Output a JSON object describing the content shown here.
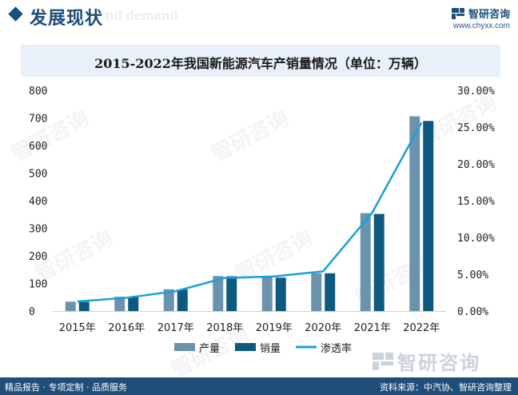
{
  "header": {
    "title": "发展现状",
    "ghost_text": "nd demand",
    "brand_name": "智研咨询",
    "brand_url": "www.chyxx.com"
  },
  "chart_data": {
    "type": "bar",
    "title": "2015-2022年我国新能源汽车产销量情况（单位：万辆）",
    "categories": [
      "2015年",
      "2016年",
      "2017年",
      "2018年",
      "2019年",
      "2020年",
      "2021年",
      "2022年"
    ],
    "series": [
      {
        "name": "产量",
        "type": "bar",
        "axis": "left",
        "color": "#6b93ad",
        "values": [
          34,
          52,
          79,
          127,
          124,
          137,
          355,
          706
        ]
      },
      {
        "name": "销量",
        "type": "bar",
        "axis": "left",
        "color": "#0d5a7e",
        "values": [
          33,
          51,
          78,
          126,
          121,
          137,
          352,
          689
        ]
      },
      {
        "name": "渗透率",
        "type": "line",
        "axis": "right",
        "color": "#1a9fdc",
        "values": [
          1.3,
          1.8,
          2.7,
          4.5,
          4.7,
          5.4,
          13.4,
          25.6
        ]
      }
    ],
    "ylim": [
      0,
      800
    ],
    "yticks": [
      "800",
      "700",
      "600",
      "500",
      "400",
      "300",
      "200",
      "100",
      "0"
    ],
    "y2lim": [
      0,
      30
    ],
    "y2ticks": [
      "30.00%",
      "25.00%",
      "20.00%",
      "15.00%",
      "10.00%",
      "5.00%",
      "0.00%"
    ],
    "legend_position": "bottom"
  },
  "watermark": "智研咨询",
  "source_brand": "智研咨询",
  "footer": {
    "left": "精品报告 · 专项定制 · 品质服务",
    "right": "资料来源：中汽协、智研咨询整理"
  },
  "colors": {
    "header": "#1f4e79",
    "title_band": "#e8f1fa",
    "footer": "#1f4e79"
  }
}
